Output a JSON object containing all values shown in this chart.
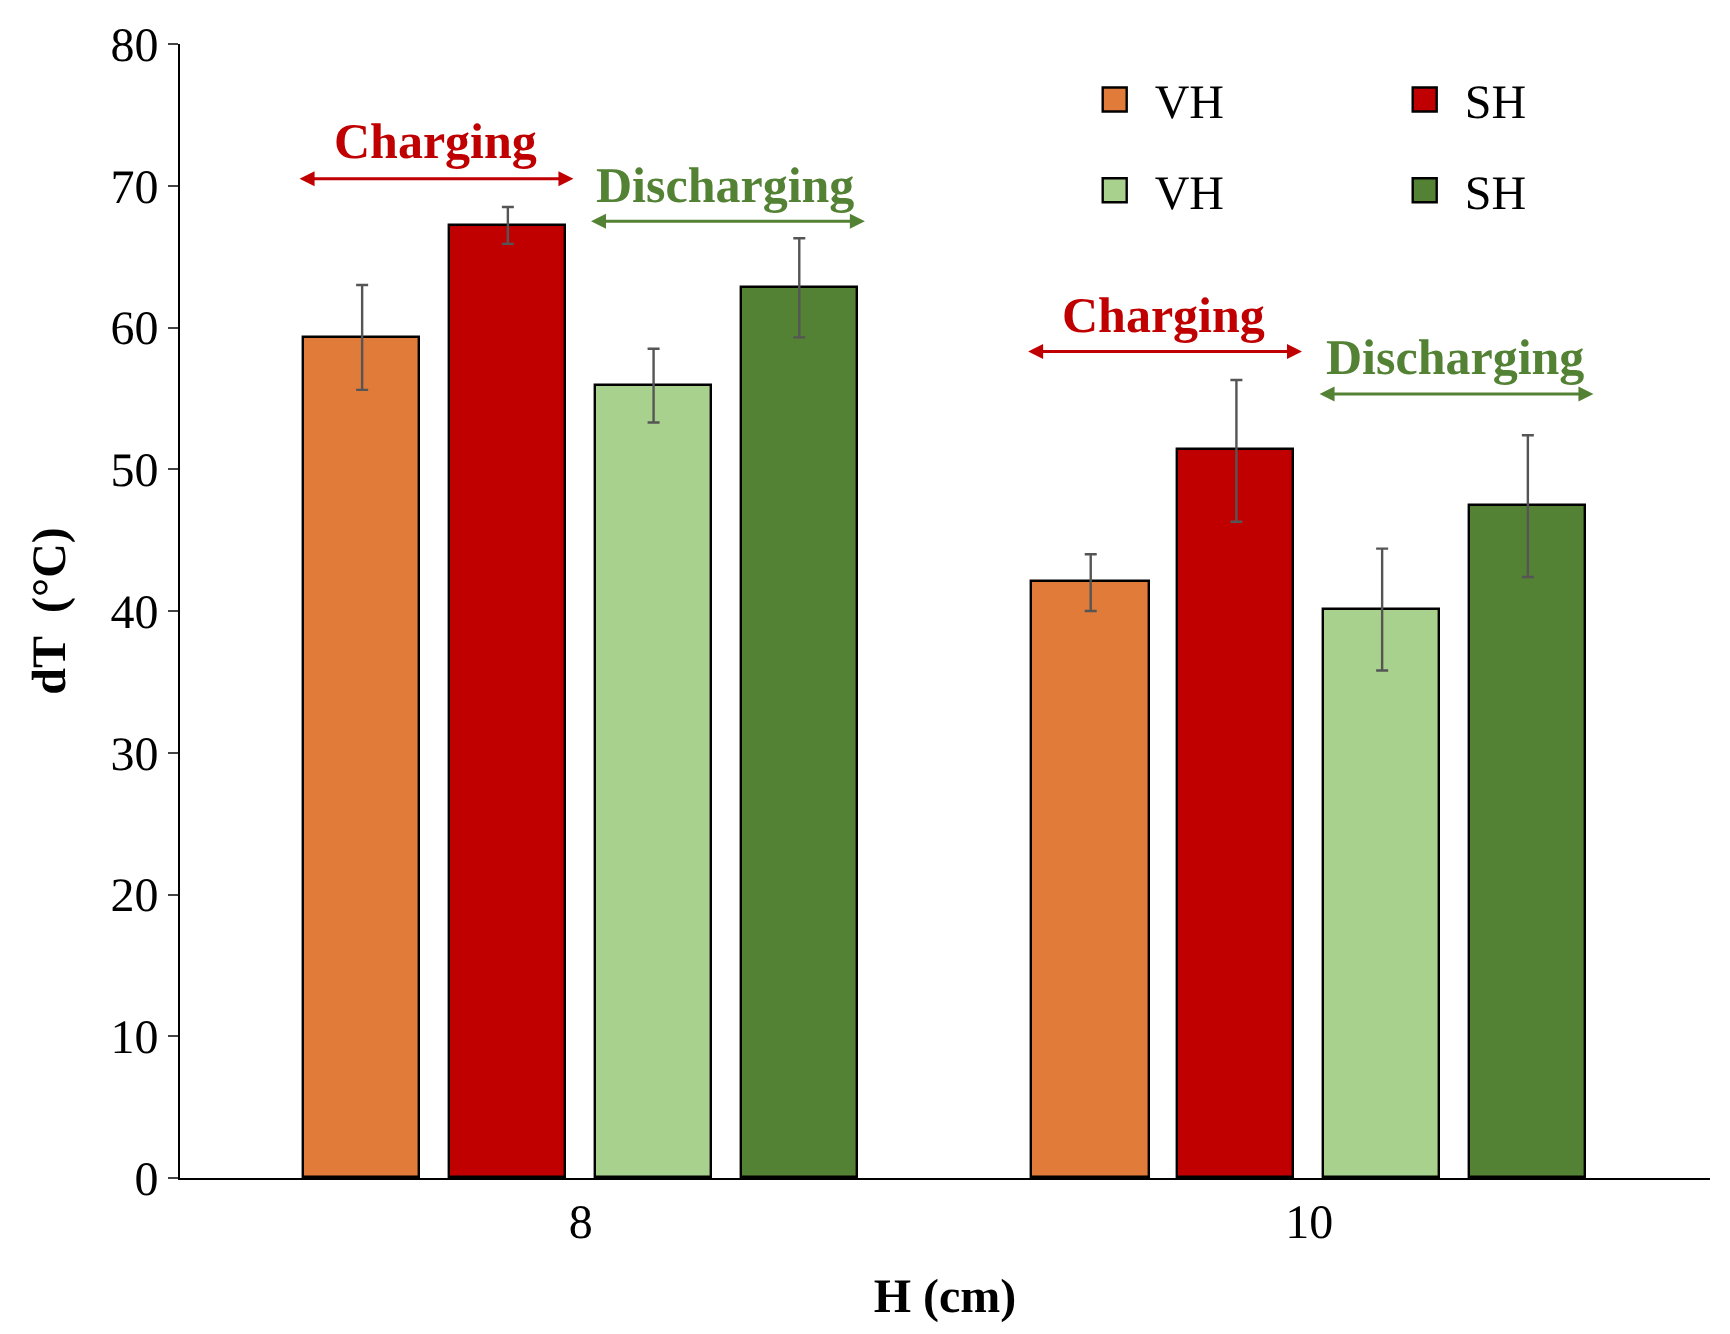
{
  "chart_data": {
    "type": "bar",
    "categories": [
      "8",
      "10"
    ],
    "xlabel": "H (cm)",
    "ylabel": "dT  (°C)",
    "ylim": [
      0,
      80
    ],
    "yticks": [
      0,
      10,
      20,
      30,
      40,
      50,
      60,
      70,
      80
    ],
    "legend": "top right",
    "series": [
      {
        "name": "VH",
        "color": "#e07b39",
        "values": [
          59.3,
          42.0
        ],
        "errors": [
          3.7,
          2.0
        ]
      },
      {
        "name": "SH",
        "color": "#c00000",
        "values": [
          67.2,
          51.3
        ],
        "errors": [
          1.3,
          5.0
        ]
      },
      {
        "name": "VH",
        "color": "#a9d18e",
        "values": [
          55.9,
          40.1
        ],
        "errors": [
          2.6,
          4.3
        ]
      },
      {
        "name": "SH",
        "color": "#548235",
        "values": [
          62.8,
          47.4
        ],
        "errors": [
          3.5,
          5.0
        ]
      }
    ],
    "annotations": [
      "Charging",
      "Discharging",
      "Charging",
      "Discharging"
    ]
  }
}
